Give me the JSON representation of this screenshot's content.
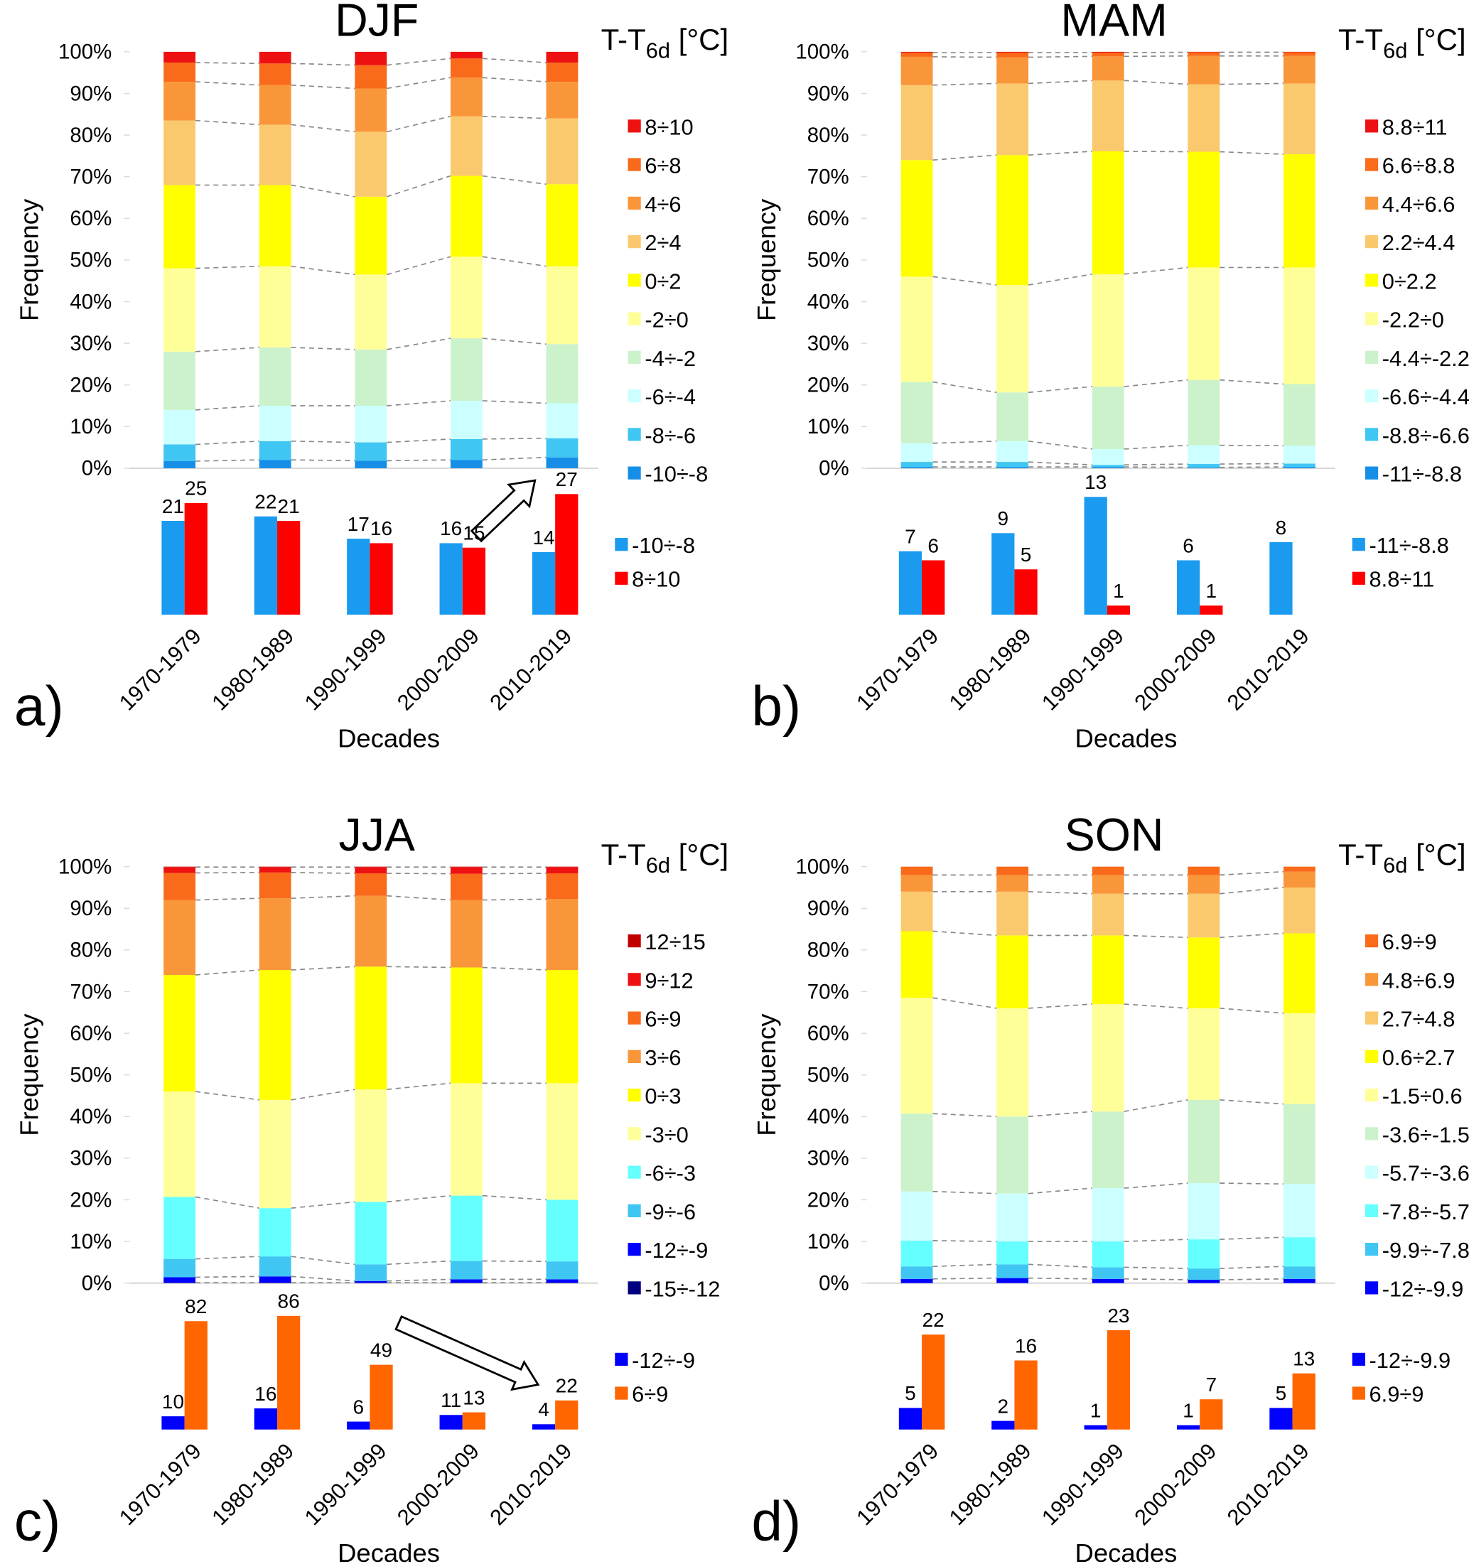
{
  "chart_data": [
    {
      "type": "stacked_bar",
      "title": "DJF",
      "legend_title": [
        "T-T",
        "6d",
        " [°C]"
      ],
      "ylabel": "Frequency",
      "ylim": [
        0,
        100
      ],
      "yticks": [
        {
          "value": 0,
          "label": "0%"
        },
        {
          "value": 10,
          "label": "10%"
        },
        {
          "value": 20,
          "label": "20%"
        },
        {
          "value": 30,
          "label": "30%"
        },
        {
          "value": 40,
          "label": "40%"
        },
        {
          "value": 50,
          "label": "50%"
        },
        {
          "value": 60,
          "label": "60%"
        },
        {
          "value": 70,
          "label": "70%"
        },
        {
          "value": 80,
          "label": "80%"
        },
        {
          "value": 90,
          "label": "90%"
        },
        {
          "value": 100,
          "label": "100%"
        }
      ],
      "series": [
        {
          "name": "8÷10",
          "color": "#ee1111",
          "values": [
            2.6,
            2.8,
            3.2,
            1.6,
            2.6
          ]
        },
        {
          "name": "6÷8",
          "color": "#f96a1b",
          "values": [
            4.6,
            5.2,
            5.6,
            4.6,
            4.6
          ]
        },
        {
          "name": "4÷6",
          "color": "#f9963a",
          "values": [
            9.3,
            9.5,
            10.4,
            9.3,
            8.8
          ]
        },
        {
          "name": "2÷4",
          "color": "#fbc96d",
          "values": [
            15.5,
            14.5,
            15.6,
            14.3,
            15.8
          ]
        },
        {
          "name": "0÷2",
          "color": "#ffff00",
          "values": [
            20,
            19.5,
            18.7,
            19.4,
            19.7
          ]
        },
        {
          "name": "-2÷0",
          "color": "#ffff99",
          "values": [
            20,
            19.5,
            18,
            19.6,
            18.7
          ]
        },
        {
          "name": "-4÷-2",
          "color": "#ccf2cc",
          "values": [
            14,
            14,
            13.5,
            15,
            14.2
          ]
        },
        {
          "name": "-6÷-4",
          "color": "#ccffff",
          "values": [
            8.3,
            8.5,
            8.8,
            9.2,
            8.4
          ]
        },
        {
          "name": "-8÷-6",
          "color": "#3fc6f2",
          "values": [
            4,
            4.5,
            4.4,
            5,
            4.6
          ]
        },
        {
          "name": "-10÷-8",
          "color": "#168ee8",
          "values": [
            1.7,
            2,
            1.8,
            2,
            2.6
          ]
        }
      ]
    },
    {
      "type": "bar",
      "panel_label": "a)",
      "xlabel": "Decades",
      "categories": [
        "1970-1979",
        "1980-1989",
        "1990-1999",
        "2000-2009",
        "2010-2019"
      ],
      "ylim": [
        0,
        29
      ],
      "series": [
        {
          "name": "-10÷-8",
          "color": "#1a9bf0",
          "values": [
            21,
            22,
            17,
            16,
            14
          ]
        },
        {
          "name": "8÷10",
          "color": "#ff0000",
          "values": [
            25,
            21,
            16,
            15,
            27
          ]
        }
      ]
    },
    {
      "type": "stacked_bar",
      "title": "MAM",
      "legend_title": [
        "T-T",
        "6d",
        " [°C]"
      ],
      "ylabel": "Frequency",
      "ylim": [
        0,
        100
      ],
      "yticks": [
        {
          "value": 0,
          "label": "0%"
        },
        {
          "value": 10,
          "label": "10%"
        },
        {
          "value": 20,
          "label": "20%"
        },
        {
          "value": 30,
          "label": "30%"
        },
        {
          "value": 40,
          "label": "40%"
        },
        {
          "value": 50,
          "label": "50%"
        },
        {
          "value": 60,
          "label": "60%"
        },
        {
          "value": 70,
          "label": "70%"
        },
        {
          "value": 80,
          "label": "80%"
        },
        {
          "value": 90,
          "label": "90%"
        },
        {
          "value": 100,
          "label": "100%"
        }
      ],
      "series": [
        {
          "name": "8.8÷11",
          "color": "#ee1111",
          "values": [
            0.2,
            0.2,
            0.2,
            0.1,
            0.1
          ]
        },
        {
          "name": "6.6÷8.8",
          "color": "#f96a1b",
          "values": [
            1,
            1.1,
            0.9,
            0.9,
            0.9
          ]
        },
        {
          "name": "4.4÷6.6",
          "color": "#f9963a",
          "values": [
            6.8,
            6.3,
            5.8,
            6.8,
            6.6
          ]
        },
        {
          "name": "2.2÷4.4",
          "color": "#fbc96d",
          "values": [
            18,
            17.2,
            17,
            16.2,
            17
          ]
        },
        {
          "name": "0÷2.2",
          "color": "#ffff00",
          "values": [
            28,
            31.2,
            29.5,
            27.8,
            27.2
          ]
        },
        {
          "name": "-2.2÷0",
          "color": "#ffff99",
          "values": [
            25.3,
            25.8,
            27,
            27,
            28
          ]
        },
        {
          "name": "-4.4÷-2.2",
          "color": "#ccf2cc",
          "values": [
            14.7,
            11.7,
            15,
            15.7,
            14.8
          ]
        },
        {
          "name": "-6.6÷-4.4",
          "color": "#ccffff",
          "values": [
            4.5,
            5,
            3.8,
            4.5,
            4.3
          ]
        },
        {
          "name": "-8.8÷-6.6",
          "color": "#3fc6f2",
          "values": [
            1.2,
            1.2,
            0.5,
            0.8,
            0.8
          ]
        },
        {
          "name": "-11÷-8.8",
          "color": "#168ee8",
          "values": [
            0.3,
            0.3,
            0.3,
            0.2,
            0.3
          ]
        }
      ]
    },
    {
      "type": "bar",
      "panel_label": "b)",
      "xlabel": "Decades",
      "categories": [
        "1970-1979",
        "1980-1989",
        "1990-1999",
        "2000-2009",
        "2010-2019"
      ],
      "ylim": [
        0,
        14.3
      ],
      "series": [
        {
          "name": "-11÷-8.8",
          "color": "#1a9bf0",
          "values": [
            7,
            9,
            13,
            6,
            8
          ]
        },
        {
          "name": "8.8÷11",
          "color": "#ff0000",
          "values": [
            6,
            5,
            1,
            1,
            null
          ]
        }
      ]
    },
    {
      "type": "stacked_bar",
      "title": "JJA",
      "legend_title": [
        "T-T",
        "6d",
        " [°C]"
      ],
      "ylabel": "Frequency",
      "ylim": [
        0,
        100
      ],
      "yticks": [
        {
          "value": 0,
          "label": "0%"
        },
        {
          "value": 10,
          "label": "10%"
        },
        {
          "value": 20,
          "label": "20%"
        },
        {
          "value": 30,
          "label": "30%"
        },
        {
          "value": 40,
          "label": "40%"
        },
        {
          "value": 50,
          "label": "50%"
        },
        {
          "value": 60,
          "label": "60%"
        },
        {
          "value": 70,
          "label": "70%"
        },
        {
          "value": 80,
          "label": "80%"
        },
        {
          "value": 90,
          "label": "90%"
        },
        {
          "value": 100,
          "label": "100%"
        }
      ],
      "series": [
        {
          "name": "12÷15",
          "color": "#c00000",
          "values": [
            0.1,
            0.1,
            0.1,
            0.1,
            0.1
          ]
        },
        {
          "name": "9÷12",
          "color": "#ee1111",
          "values": [
            1.4,
            1.3,
            1.5,
            1.6,
            1.5
          ]
        },
        {
          "name": "6÷9",
          "color": "#f96a1b",
          "values": [
            6.5,
            6.2,
            5.4,
            6.3,
            6.2
          ]
        },
        {
          "name": "3÷6",
          "color": "#f9963a",
          "values": [
            18,
            17.2,
            17,
            16.2,
            17
          ]
        },
        {
          "name": "0÷3",
          "color": "#ffff00",
          "values": [
            28,
            31.2,
            29.5,
            27.8,
            27.2
          ]
        },
        {
          "name": "-3÷0",
          "color": "#ffff99",
          "values": [
            25.3,
            26,
            27,
            27,
            28
          ]
        },
        {
          "name": "-6÷-3",
          "color": "#66ffff",
          "values": [
            14.9,
            11.6,
            15,
            15.7,
            14.8
          ]
        },
        {
          "name": "-9÷-6",
          "color": "#3fc6f2",
          "values": [
            4.4,
            4.8,
            4,
            4.4,
            4.3
          ]
        },
        {
          "name": "-12÷-9",
          "color": "#0000ff",
          "values": [
            1.3,
            1.5,
            0.4,
            0.8,
            0.8
          ]
        },
        {
          "name": "-15÷-12",
          "color": "#000080",
          "values": [
            0.1,
            0.1,
            0.1,
            0.1,
            0.1
          ]
        }
      ]
    },
    {
      "type": "bar",
      "panel_label": "c)",
      "xlabel": "Decades",
      "categories": [
        "1970-1979",
        "1980-1989",
        "1990-1999",
        "2000-2009",
        "2010-2019"
      ],
      "ylim": [
        0,
        98
      ],
      "series": [
        {
          "name": "-12÷-9",
          "color": "#0000ff",
          "values": [
            10,
            16,
            6,
            11,
            4
          ]
        },
        {
          "name": "6÷9",
          "color": "#ff6600",
          "values": [
            82,
            86,
            49,
            13,
            22
          ]
        }
      ]
    },
    {
      "type": "stacked_bar",
      "title": "SON",
      "legend_title": [
        "T-T",
        "6d",
        " [°C]"
      ],
      "ylabel": "Frequency",
      "ylim": [
        0,
        100
      ],
      "yticks": [
        {
          "value": 0,
          "label": "0%"
        },
        {
          "value": 10,
          "label": "10%"
        },
        {
          "value": 20,
          "label": "20%"
        },
        {
          "value": 30,
          "label": "30%"
        },
        {
          "value": 40,
          "label": "40%"
        },
        {
          "value": 50,
          "label": "50%"
        },
        {
          "value": 60,
          "label": "60%"
        },
        {
          "value": 70,
          "label": "70%"
        },
        {
          "value": 80,
          "label": "80%"
        },
        {
          "value": 90,
          "label": "90%"
        },
        {
          "value": 100,
          "label": "100%"
        }
      ],
      "series": [
        {
          "name": "6.9÷9",
          "color": "#f96a1b",
          "values": [
            2,
            2,
            2,
            2,
            1.2
          ]
        },
        {
          "name": "4.8÷6.9",
          "color": "#f9963a",
          "values": [
            4,
            4,
            4.5,
            4.5,
            3.8
          ]
        },
        {
          "name": "2.7÷4.8",
          "color": "#fbc96d",
          "values": [
            9.5,
            10.5,
            10,
            10.5,
            11
          ]
        },
        {
          "name": "0.6÷2.7",
          "color": "#ffff00",
          "values": [
            16,
            17.5,
            16.5,
            17,
            19.2
          ]
        },
        {
          "name": "-1.5÷0.6",
          "color": "#ffff99",
          "values": [
            27.8,
            26,
            25.8,
            22,
            21.8
          ]
        },
        {
          "name": "-3.6÷-1.5",
          "color": "#ccf2cc",
          "values": [
            18.7,
            18.5,
            18.4,
            20,
            19.2
          ]
        },
        {
          "name": "-5.7÷-3.6",
          "color": "#ccffff",
          "values": [
            11.8,
            11.5,
            12.8,
            13.5,
            12.8
          ]
        },
        {
          "name": "-7.8÷-5.7",
          "color": "#66ffff",
          "values": [
            6.2,
            5.5,
            6.2,
            7,
            7
          ]
        },
        {
          "name": "-9.9÷-7.8",
          "color": "#3fc6f2",
          "values": [
            3,
            3.3,
            2.8,
            2.7,
            3
          ]
        },
        {
          "name": "-12÷-9.9",
          "color": "#0000ff",
          "values": [
            1,
            1.2,
            1,
            0.8,
            1
          ]
        }
      ]
    },
    {
      "type": "bar",
      "panel_label": "d)",
      "xlabel": "Decades",
      "categories": [
        "1970-1979",
        "1980-1989",
        "1990-1999",
        "2000-2009",
        "2010-2019"
      ],
      "ylim": [
        0,
        30
      ],
      "series": [
        {
          "name": "-12÷-9.9",
          "color": "#0000ff",
          "values": [
            5,
            2,
            1,
            1,
            5
          ]
        },
        {
          "name": "6.9÷9",
          "color": "#ff6600",
          "values": [
            22,
            16,
            23,
            7,
            13
          ]
        }
      ]
    }
  ]
}
